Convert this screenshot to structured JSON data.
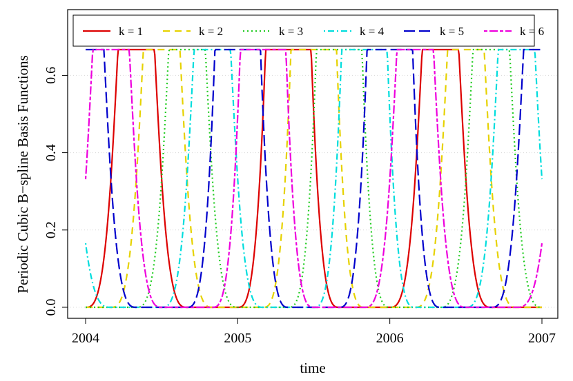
{
  "chart_data": {
    "type": "line",
    "title": "",
    "xlabel": "time",
    "ylabel": "Periodic Cubic B−spline Basis Functions",
    "xlim": [
      2004,
      2007
    ],
    "ylim": [
      0,
      0.6667
    ],
    "x_ticks": [
      {
        "value": 2004,
        "label": "2004"
      },
      {
        "value": 2005,
        "label": "2005"
      },
      {
        "value": 2006,
        "label": "2006"
      },
      {
        "value": 2007,
        "label": "2007"
      }
    ],
    "y_ticks": [
      {
        "value": 0.0,
        "label": "0.0"
      },
      {
        "value": 0.2,
        "label": "0.2"
      },
      {
        "value": 0.4,
        "label": "0.4"
      },
      {
        "value": 0.6,
        "label": "0.6"
      }
    ],
    "grid": "horizontal dotted",
    "legend_position": "top",
    "period": 1,
    "basis_peak": 0.6667,
    "series": [
      {
        "name": "k = 1",
        "color": "#dd0000",
        "dash": "solid",
        "peak_times": [
          2004.333,
          2005.333,
          2006.333
        ]
      },
      {
        "name": "k = 2",
        "color": "#e6d200",
        "dash": "dashed",
        "peak_times": [
          2004.5,
          2005.5,
          2006.5
        ]
      },
      {
        "name": "k = 3",
        "color": "#22cc22",
        "dash": "dotted",
        "peak_times": [
          2004.667,
          2005.667,
          2006.667
        ]
      },
      {
        "name": "k = 4",
        "color": "#00dddd",
        "dash": "dotdash",
        "peak_times": [
          2004.833,
          2005.833,
          2006.833
        ]
      },
      {
        "name": "k = 5",
        "color": "#0000cc",
        "dash": "longdash",
        "peak_times": [
          2004.0,
          2005.0,
          2006.0,
          2007.0
        ]
      },
      {
        "name": "k = 6",
        "color": "#ee00dd",
        "dash": "twodash",
        "peak_times": [
          2004.167,
          2005.167,
          2006.167
        ]
      }
    ]
  }
}
